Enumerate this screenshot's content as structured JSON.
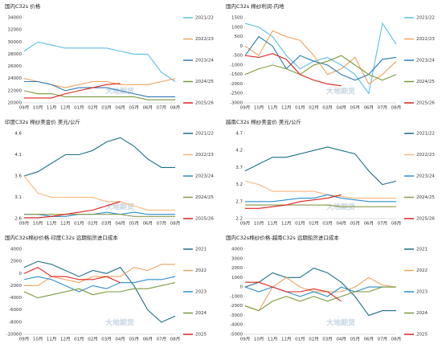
{
  "chart_data": [
    {
      "type": "line",
      "title": "国内C32s 价格",
      "watermark": "大地期货",
      "categories": [
        "09月",
        "10月",
        "11月",
        "12月",
        "01月",
        "02月",
        "03月",
        "04月",
        "05月",
        "06月",
        "07月",
        "08月"
      ],
      "ylim": [
        20000,
        34000
      ],
      "yticks": [
        20000,
        22000,
        24000,
        26000,
        28000,
        30000,
        32000,
        34000
      ],
      "series": [
        {
          "name": "2021/22",
          "color": "#5bbfe3",
          "values": [
            28500,
            30000,
            29500,
            29000,
            29000,
            29000,
            29000,
            28500,
            28000,
            28000,
            25000,
            23500
          ]
        },
        {
          "name": "2022/23",
          "color": "#f0a35e",
          "values": [
            24000,
            23500,
            23000,
            22500,
            23000,
            23500,
            23500,
            23000,
            23000,
            23000,
            23500,
            24000
          ]
        },
        {
          "name": "2023/24",
          "color": "#2a7ab8",
          "values": [
            23500,
            23500,
            23000,
            22000,
            22500,
            22500,
            22500,
            22000,
            21500,
            21000,
            21000,
            21000
          ]
        },
        {
          "name": "2024/25",
          "color": "#7a9a3a",
          "values": [
            22000,
            21500,
            21500,
            21000,
            21000,
            21000,
            21000,
            21000,
            21000,
            20500,
            20500,
            20500
          ]
        },
        {
          "name": "2025/26",
          "color": "#e0201b",
          "values": [
            20800,
            20800,
            20800,
            21500,
            22000,
            22500,
            23000,
            23200,
            null,
            null,
            null,
            null
          ]
        }
      ]
    },
    {
      "type": "line",
      "title": "国内C32s 棉纱利润-内地",
      "watermark": "大地期货",
      "categories": [
        "09月",
        "10月",
        "11月",
        "12月",
        "01月",
        "02月",
        "03月",
        "04月",
        "05月",
        "06月",
        "07月",
        "08月"
      ],
      "ylim": [
        -3000,
        1500
      ],
      "yticks": [
        -3000,
        -2500,
        -2000,
        -1500,
        -1000,
        -500,
        0,
        500,
        1000,
        1500
      ],
      "series": [
        {
          "name": "2021/22",
          "color": "#5bbfe3",
          "values": [
            1200,
            1000,
            500,
            -500,
            -1200,
            -800,
            -600,
            -1000,
            -1500,
            -2500,
            1200,
            100
          ]
        },
        {
          "name": "2022/23",
          "color": "#f0a35e",
          "values": [
            0,
            -500,
            800,
            500,
            300,
            -500,
            -1500,
            -1200,
            -600,
            -2000,
            -1500,
            -800
          ]
        },
        {
          "name": "2023/24",
          "color": "#2a7ab8",
          "values": [
            -500,
            500,
            0,
            -1200,
            -500,
            -800,
            -1000,
            -1500,
            -1800,
            -1500,
            -700,
            -600
          ]
        },
        {
          "name": "2024/25",
          "color": "#7a9a3a",
          "values": [
            -1500,
            -1200,
            -1000,
            -1200,
            -1500,
            -1000,
            -800,
            -500,
            -1000,
            -1500,
            -1800,
            -1500
          ]
        },
        {
          "name": "2025/26",
          "color": "#e0201b",
          "values": [
            -500,
            -600,
            -400,
            -700,
            -1500,
            -1800,
            -2000,
            -2100,
            null,
            null,
            null,
            null
          ]
        }
      ]
    },
    {
      "type": "line",
      "title": "印度C32s 棉纱美金价   美元/公斤",
      "watermark": "大地期货",
      "categories": [
        "09月",
        "10月",
        "11月",
        "12月",
        "01月",
        "02月",
        "03月",
        "04月",
        "05月",
        "06月",
        "07月",
        "08月"
      ],
      "ylim": [
        2.6,
        4.6
      ],
      "yticks": [
        2.6,
        3.1,
        3.6,
        4.1,
        4.6
      ],
      "series": [
        {
          "name": "2021/22",
          "color": "#1d6f86",
          "values": [
            3.6,
            3.7,
            3.9,
            4.1,
            4.1,
            4.2,
            4.4,
            4.5,
            4.3,
            4.0,
            3.8,
            3.8
          ]
        },
        {
          "name": "2022/23",
          "color": "#f5b77a",
          "values": [
            3.6,
            3.2,
            3.1,
            3.1,
            3.1,
            3.1,
            3.0,
            3.0,
            2.9,
            2.8,
            2.8,
            2.8
          ]
        },
        {
          "name": "2023/24",
          "color": "#2b8fd0",
          "values": [
            2.7,
            2.7,
            2.65,
            2.65,
            2.7,
            2.7,
            2.75,
            2.7,
            2.75,
            2.7,
            2.7,
            2.7
          ]
        },
        {
          "name": "2024/25",
          "color": "#8a9a4a",
          "values": [
            2.7,
            2.7,
            2.7,
            2.7,
            2.7,
            2.7,
            2.7,
            2.7,
            2.65,
            2.65,
            2.65,
            2.65
          ]
        },
        {
          "name": "2025/26",
          "color": "#e0201b",
          "values": [
            2.62,
            2.62,
            2.65,
            2.7,
            2.75,
            2.8,
            2.9,
            3.0,
            null,
            null,
            null,
            null
          ]
        }
      ]
    },
    {
      "type": "line",
      "title": "越南C32s 棉纱美金价  美元/公斤",
      "watermark": "大地期货",
      "categories": [
        "09月",
        "10月",
        "11月",
        "12月",
        "01月",
        "02月",
        "03月",
        "04月",
        "05月",
        "06月",
        "07月",
        "08月"
      ],
      "ylim": [
        2.2,
        4.7
      ],
      "yticks": [
        2.2,
        2.7,
        3.2,
        3.7,
        4.2,
        4.7
      ],
      "series": [
        {
          "name": "2021/22",
          "color": "#1d6f86",
          "values": [
            3.6,
            3.8,
            4.0,
            4.0,
            4.1,
            4.2,
            4.3,
            4.2,
            4.1,
            3.6,
            3.2,
            3.3
          ]
        },
        {
          "name": "2022/23",
          "color": "#f5b77a",
          "values": [
            3.3,
            3.2,
            3.0,
            3.0,
            3.0,
            3.0,
            2.9,
            2.85,
            2.8,
            2.8,
            2.8,
            2.8
          ]
        },
        {
          "name": "2023/24",
          "color": "#2b8fd0",
          "values": [
            2.7,
            2.7,
            2.7,
            2.75,
            2.8,
            2.8,
            2.9,
            2.8,
            2.75,
            2.7,
            2.7,
            2.7
          ]
        },
        {
          "name": "2024/25",
          "color": "#8a9a4a",
          "values": [
            2.6,
            2.6,
            2.6,
            2.6,
            2.6,
            2.6,
            2.6,
            2.55,
            2.55,
            2.55,
            2.55,
            2.55
          ]
        },
        {
          "name": "2025/26",
          "color": "#e0201b",
          "values": [
            2.5,
            2.5,
            2.55,
            2.6,
            2.7,
            2.75,
            2.8,
            2.9,
            null,
            null,
            null,
            null
          ]
        }
      ]
    },
    {
      "type": "line",
      "title": "国内C32s棉纱价格-印度C32s 远期船货进口成本",
      "watermark": "大地期货",
      "categories": [
        "09月",
        "10月",
        "11月",
        "12月",
        "01月",
        "02月",
        "03月",
        "04月",
        "05月",
        "06月",
        "07月",
        "08月"
      ],
      "ylim": [
        -10000,
        4000
      ],
      "yticks": [
        -10000,
        -8000,
        -6000,
        -4000,
        -2000,
        0,
        2000,
        4000
      ],
      "series": [
        {
          "name": "2021",
          "color": "#1d6f86",
          "values": [
            1000,
            2000,
            1500,
            500,
            -500,
            500,
            0,
            1000,
            -2000,
            -6000,
            -8000,
            -7000
          ]
        },
        {
          "name": "2022",
          "color": "#f0a35e",
          "values": [
            -2000,
            -2000,
            -500,
            -1000,
            -1500,
            -500,
            -500,
            -500,
            1000,
            500,
            1500,
            1500
          ]
        },
        {
          "name": "2023",
          "color": "#2b8fd0",
          "values": [
            -1000,
            -500,
            -1000,
            -2000,
            -3000,
            -2000,
            -2500,
            -1500,
            -1500,
            -1000,
            -1000,
            -500
          ]
        },
        {
          "name": "2024",
          "color": "#7a9a3a",
          "values": [
            -3000,
            -4000,
            -3500,
            -3000,
            -2500,
            -3500,
            -3000,
            -3000,
            -2500,
            -2500,
            -2000,
            -1500
          ]
        },
        {
          "name": "2025",
          "color": "#e0201b",
          "values": [
            0,
            1000,
            -500,
            -500,
            -1000,
            -1000,
            -500,
            -1500,
            null,
            null,
            null,
            null
          ]
        }
      ]
    },
    {
      "type": "line",
      "title": "国内C32s棉纱价格-越南C32s 远期船货进口成本",
      "watermark": "大地期货",
      "categories": [
        "09月",
        "10月",
        "11月",
        "12月",
        "01月",
        "02月",
        "03月",
        "04月",
        "05月",
        "06月",
        "07月",
        "08月"
      ],
      "ylim": [
        -5000,
        4000
      ],
      "yticks": [
        -5000,
        -4000,
        -3000,
        -2000,
        -1000,
        0,
        1000,
        2000,
        3000,
        4000
      ],
      "series": [
        {
          "name": "2021",
          "color": "#1d6f86",
          "values": [
            0,
            500,
            1500,
            1000,
            1000,
            2000,
            1500,
            500,
            -1000,
            -3000,
            -2500,
            -2500
          ]
        },
        {
          "name": "2022",
          "color": "#f0a35e",
          "values": [
            -2000,
            -2500,
            0,
            1000,
            0,
            -500,
            -500,
            -500,
            0,
            1000,
            200,
            0
          ]
        },
        {
          "name": "2023",
          "color": "#2b8fd0",
          "values": [
            0,
            -500,
            0,
            -500,
            -1000,
            -500,
            -1000,
            0,
            -500,
            0,
            0,
            0
          ]
        },
        {
          "name": "2024",
          "color": "#7a9a3a",
          "values": [
            -2000,
            -2500,
            -1500,
            -1000,
            -1500,
            -1000,
            -1500,
            -1000,
            -500,
            -500,
            0,
            0
          ]
        },
        {
          "name": "2025",
          "color": "#e0201b",
          "values": [
            500,
            500,
            0,
            -500,
            -500,
            -200,
            -500,
            -1500,
            null,
            null,
            null,
            null
          ]
        }
      ]
    }
  ]
}
